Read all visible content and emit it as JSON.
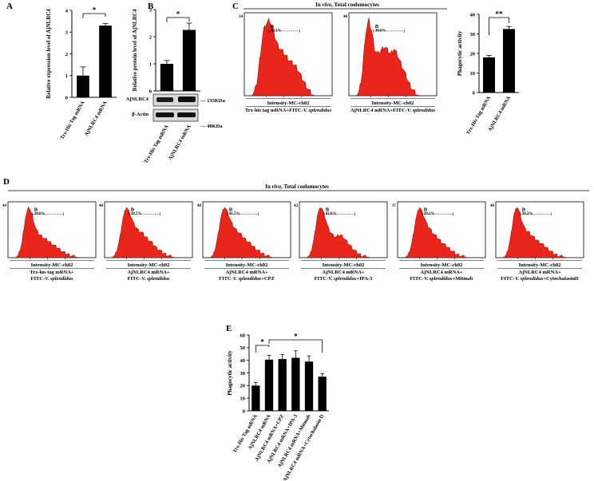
{
  "chart_data": [
    {
      "panel": "A",
      "type": "bar",
      "categories": [
        "Trx-His Tag mRNA",
        "AjNLRC4 mRNA"
      ],
      "values": [
        1.0,
        3.3
      ],
      "errors": [
        0.4,
        0.1
      ],
      "ylabel": "Relative expression level of AjNLRC4",
      "ylim": [
        0,
        4
      ],
      "yticks": [
        0,
        1,
        2,
        3,
        4
      ],
      "significance": "*"
    },
    {
      "panel": "B",
      "type": "bar",
      "categories": [
        "Trx-His Tag mRNA",
        "AjNLRC4 mRNA"
      ],
      "values": [
        1.0,
        2.25
      ],
      "errors": [
        0.12,
        0.25
      ],
      "ylabel": "Relative protein level of AjNLRC4",
      "ylim": [
        0,
        3
      ],
      "yticks": [
        0,
        1,
        2,
        3
      ],
      "significance": "*",
      "blot": {
        "rows": [
          "AjNLRC4",
          "β-Actin"
        ],
        "markers": [
          "135KDa",
          "40KDa"
        ]
      }
    },
    {
      "panel": "C",
      "type": "histogram",
      "header": "In vivo, Total coelomocytes",
      "header_prefix": "In ",
      "header_italic": "vivo",
      "header_suffix": ", Total coelomocytes",
      "plots": [
        {
          "ymax": "34",
          "gate": "B",
          "percent": "18.1%",
          "xlabel": "Intensity-MC-ch02",
          "caption_lines": [
            [
              "Trx-his tag mRNA+FITC-",
              "V. splendidus",
              ""
            ]
          ],
          "profile": [
            0,
            0.05,
            0.2,
            0.55,
            0.85,
            0.95,
            1.0,
            0.9,
            0.75,
            0.65,
            0.6,
            0.55,
            0.5,
            0.45,
            0.42,
            0.38,
            0.3,
            0.22,
            0.15,
            0.08,
            0.03,
            0
          ]
        },
        {
          "ymax": "40",
          "gate": "B",
          "percent": "30.0%",
          "xlabel": "Intensity-MC-ch02",
          "caption_lines": [
            [
              "AjNLRC4 mRNA+FITC-",
              "V. splendidus",
              ""
            ]
          ],
          "profile": [
            0,
            0.05,
            0.3,
            0.8,
            1.0,
            0.85,
            0.6,
            0.55,
            0.6,
            0.65,
            0.6,
            0.55,
            0.62,
            0.55,
            0.45,
            0.35,
            0.25,
            0.15,
            0.08,
            0.03,
            0
          ]
        }
      ]
    },
    {
      "panel": "C",
      "type": "bar",
      "categories": [
        "Trx-His Tag mRNA",
        "AjNLRC4 mRNA"
      ],
      "values": [
        18,
        32.5
      ],
      "errors": [
        1,
        1.3
      ],
      "ylabel": "Phagocytic activity",
      "ylim": [
        0,
        40
      ],
      "yticks": [
        0,
        10,
        20,
        30,
        40
      ],
      "significance": "**"
    },
    {
      "panel": "D",
      "type": "histogram",
      "header": "In vivo, Total coelomocytes",
      "header_prefix": "In ",
      "header_italic": "vivo",
      "header_suffix": ", Total coelomocytes",
      "plots": [
        {
          "ymax": "44",
          "gate": "B",
          "percent": "20.0%",
          "xlabel": "Intensity-MC-ch02",
          "caption_lines": [
            [
              "Trx-his tag mRNA+",
              "",
              ""
            ],
            [
              "FITC-",
              "V. splendidus",
              ""
            ]
          ],
          "profile": [
            0,
            0.05,
            0.3,
            0.8,
            1.0,
            0.8,
            0.55,
            0.45,
            0.4,
            0.35,
            0.3,
            0.25,
            0.2,
            0.15,
            0.1,
            0.07,
            0.04,
            0.02,
            0
          ]
        },
        {
          "ymax": "40",
          "gate": "B",
          "percent": "39.7%",
          "xlabel": "Intensity-MC-ch02",
          "caption_lines": [
            [
              "AjNLRC4 mRNA+",
              "",
              ""
            ],
            [
              "FITC-",
              "V. splendidus",
              ""
            ]
          ],
          "profile": [
            0,
            0.05,
            0.3,
            0.75,
            1.0,
            0.85,
            0.65,
            0.55,
            0.5,
            0.42,
            0.35,
            0.28,
            0.2,
            0.14,
            0.09,
            0.05,
            0.02,
            0
          ]
        },
        {
          "ymax": "40",
          "gate": "B",
          "percent": "41.7%",
          "xlabel": "Intensity-MC-ch02",
          "caption_lines": [
            [
              "AjNLRC4 mRNA+",
              "",
              ""
            ],
            [
              "FITC-",
              "V. splendidus",
              "+CPZ"
            ]
          ],
          "profile": [
            0,
            0.05,
            0.35,
            0.8,
            1.0,
            0.85,
            0.65,
            0.55,
            0.48,
            0.4,
            0.33,
            0.27,
            0.2,
            0.14,
            0.09,
            0.05,
            0.02,
            0
          ]
        },
        {
          "ymax": "42",
          "gate": "B",
          "percent": "42.0%",
          "xlabel": "Intensity-MC-ch02",
          "caption_lines": [
            [
              "AjNLRC4 mRNA+",
              "",
              ""
            ],
            [
              "FITC-",
              "V. splendidus",
              "+IPA-3"
            ]
          ],
          "profile": [
            0,
            0.05,
            0.35,
            0.85,
            1.0,
            0.8,
            0.55,
            0.45,
            0.4,
            0.45,
            0.4,
            0.3,
            0.22,
            0.14,
            0.08,
            0.04,
            0.02,
            0
          ]
        },
        {
          "ymax": "37",
          "gate": "B",
          "percent": "39.2%",
          "xlabel": "Intensity-MC-ch02",
          "caption_lines": [
            [
              "AjNLRC4 mRNA+",
              "",
              ""
            ],
            [
              "FITC-",
              "V. splendidus",
              "+Mitmab"
            ]
          ],
          "profile": [
            0,
            0.05,
            0.3,
            0.75,
            1.0,
            0.85,
            0.65,
            0.55,
            0.45,
            0.38,
            0.3,
            0.24,
            0.18,
            0.12,
            0.07,
            0.04,
            0.02,
            0
          ]
        },
        {
          "ymax": "40",
          "gate": "B",
          "percent": "29.3%",
          "xlabel": "Intensity-MC-ch02",
          "caption_lines": [
            [
              "AjNLRC4 mRNA+",
              "",
              ""
            ],
            [
              "FITC-",
              "V. splendidus",
              "+CytochalasinD"
            ]
          ],
          "profile": [
            0,
            0.05,
            0.35,
            0.85,
            1.0,
            0.75,
            0.55,
            0.5,
            0.42,
            0.35,
            0.3,
            0.24,
            0.18,
            0.12,
            0.07,
            0.04,
            0.02,
            0
          ]
        }
      ]
    },
    {
      "panel": "E",
      "type": "bar",
      "categories": [
        "Trx-His Tag mRNA",
        "AjNLRC4 mRNA",
        "AjNLRC4 mRNA+CPZ",
        "AjNLRC4 mRNA+IPA-3",
        "AjNLRC4 mRNA+Mitmab",
        "AjNLRC4 mRNA+Cytochalasin D"
      ],
      "values": [
        20,
        40.5,
        41,
        42,
        39,
        27
      ],
      "errors": [
        2.5,
        3.5,
        3.5,
        5.5,
        4.5,
        2.5
      ],
      "ylabel": "Phagocytic activity",
      "ylim": [
        0,
        60
      ],
      "yticks": [
        0,
        10,
        20,
        30,
        40,
        50,
        60
      ],
      "significance": [
        "*",
        "*"
      ]
    }
  ],
  "colors": {
    "histogram_fill": "#e8261c",
    "bar": "#000000"
  }
}
